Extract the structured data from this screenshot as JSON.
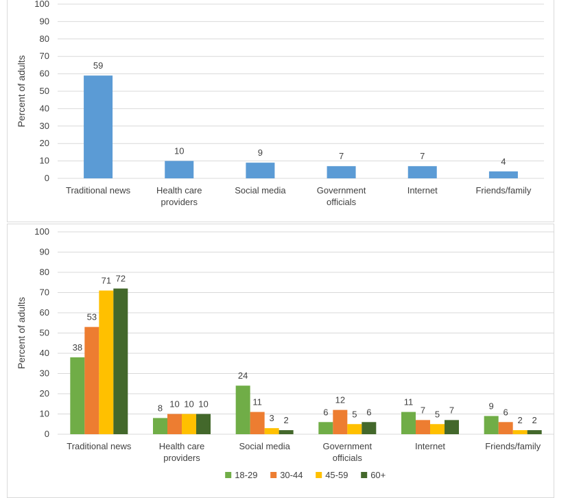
{
  "chart_data": [
    {
      "type": "bar",
      "ylabel": "Percent of adults",
      "ylim": [
        0,
        100
      ],
      "yticks": [
        0,
        10,
        20,
        30,
        40,
        50,
        60,
        70,
        80,
        90,
        100
      ],
      "grid": true,
      "categories": [
        [
          "Traditional news"
        ],
        [
          "Health care",
          "providers"
        ],
        [
          "Social media"
        ],
        [
          "Government",
          "officials"
        ],
        [
          "Internet"
        ],
        [
          "Friends/family"
        ]
      ],
      "series": [
        {
          "values": [
            59,
            10,
            9,
            7,
            7,
            4
          ],
          "color": "#5b9bd5"
        }
      ]
    },
    {
      "type": "bar",
      "ylabel": "Percent of adults",
      "ylim": [
        0,
        100
      ],
      "yticks": [
        0,
        10,
        20,
        30,
        40,
        50,
        60,
        70,
        80,
        90,
        100
      ],
      "grid": true,
      "legend_position": "bottom",
      "categories": [
        [
          "Traditional news"
        ],
        [
          "Health care",
          "providers"
        ],
        [
          "Social media"
        ],
        [
          "Government",
          "officials"
        ],
        [
          "Internet"
        ],
        [
          "Friends/family"
        ]
      ],
      "series": [
        {
          "name": "18-29",
          "values": [
            38,
            8,
            24,
            6,
            11,
            9
          ],
          "color": "#70ad47"
        },
        {
          "name": "30-44",
          "values": [
            53,
            10,
            11,
            12,
            7,
            6
          ],
          "color": "#ed7d31"
        },
        {
          "name": "45-59",
          "values": [
            71,
            10,
            3,
            5,
            5,
            2
          ],
          "color": "#ffc000"
        },
        {
          "name": "60+",
          "values": [
            72,
            10,
            2,
            6,
            7,
            2
          ],
          "color": "#43682b"
        }
      ]
    }
  ]
}
